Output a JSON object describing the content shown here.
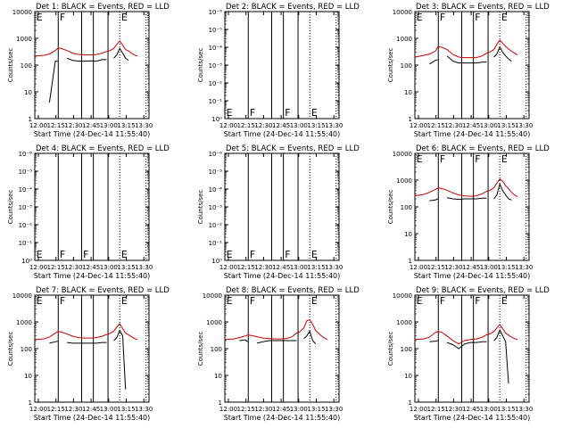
{
  "figure": {
    "x_tick_labels": [
      "12:00",
      "12:15",
      "12:30",
      "12:45",
      "13:00",
      "13:15",
      "13:30"
    ],
    "x_label": "Start Time (24-Dec-14 11:55:40)",
    "y_label": "Counts/sec",
    "colors": {
      "events": "#000000",
      "lld": "#cc0000",
      "background": "#ffffff"
    }
  },
  "chart_data": [
    {
      "title": "Det 1: BLACK = Events, RED = LLD",
      "type": "line",
      "yscale": "log",
      "y_tick_labels": [
        "1",
        "10",
        "100",
        "1000",
        "10000"
      ],
      "ylim": [
        1,
        10000
      ],
      "xlim_minutes": [
        -3,
        36
      ],
      "vlines_solid": [
        5,
        13,
        17,
        22
      ],
      "vlines_dotted": [
        26,
        35
      ],
      "flags": [
        {
          "x": -2.5,
          "text": "E"
        },
        {
          "x": 5.5,
          "text": "F"
        },
        {
          "x": 26.5,
          "text": "E"
        }
      ],
      "x_minutes": [
        -3,
        0,
        2,
        4,
        4.8,
        5,
        6,
        8,
        10,
        12,
        14,
        16,
        18,
        20,
        21.5,
        22,
        22.5,
        24,
        25,
        26,
        27,
        28,
        29,
        30,
        31,
        32
      ],
      "series": [
        {
          "name": "RED = LLD",
          "values": [
            220,
            230,
            260,
            350,
            420,
            430,
            420,
            350,
            280,
            250,
            240,
            240,
            250,
            280,
            320,
            330,
            340,
            420,
            600,
            800,
            560,
            380,
            340,
            280,
            240,
            215
          ]
        },
        {
          "name": "BLACK = Events",
          "values": [
            null,
            null,
            4,
            140,
            140,
            null,
            null,
            180,
            150,
            140,
            140,
            145,
            140,
            160,
            160,
            null,
            null,
            180,
            240,
            420,
            280,
            180,
            150,
            null,
            null,
            null
          ]
        }
      ]
    },
    {
      "title": "Det 2: BLACK = Events, RED = LLD",
      "type": "line",
      "yscale": "log",
      "y_tick_labels": [
        "10⁰",
        "10⁻¹",
        "10⁻²",
        "10⁻³",
        "10⁻⁴",
        "10⁻⁵",
        "10⁻⁶"
      ],
      "ylim": [
        1,
        1e-06
      ],
      "xlim_minutes": [
        -3,
        36
      ],
      "vlines_solid": [
        5,
        13,
        17,
        22
      ],
      "vlines_dotted": [
        26,
        35
      ],
      "flags": [
        {
          "x": -2.5,
          "text": "E"
        },
        {
          "x": 5.5,
          "text": "F"
        },
        {
          "x": 17.5,
          "text": "F"
        },
        {
          "x": 26.5,
          "text": "E"
        }
      ],
      "x_minutes": [],
      "series": []
    },
    {
      "title": "Det 3: BLACK = Events, RED = LLD",
      "type": "line",
      "yscale": "log",
      "y_tick_labels": [
        "1",
        "10",
        "100",
        "1000",
        "10000"
      ],
      "ylim": [
        1,
        10000
      ],
      "xlim_minutes": [
        -3,
        36
      ],
      "vlines_solid": [
        5,
        13,
        17,
        22
      ],
      "vlines_dotted": [
        26,
        35
      ],
      "flags": [
        {
          "x": -2.5,
          "text": "E"
        },
        {
          "x": 5.5,
          "text": "F"
        },
        {
          "x": 17.5,
          "text": "F"
        },
        {
          "x": 26.5,
          "text": "E"
        }
      ],
      "x_minutes": [
        -3,
        0,
        2,
        4,
        4.8,
        5,
        6,
        8,
        10,
        12,
        14,
        16,
        18,
        20,
        21.5,
        22,
        22.5,
        24,
        25,
        26,
        27,
        28,
        29,
        30,
        31,
        32
      ],
      "series": [
        {
          "name": "RED = LLD",
          "values": [
            200,
            230,
            260,
            330,
            470,
            480,
            470,
            380,
            250,
            200,
            190,
            190,
            190,
            220,
            280,
            290,
            300,
            380,
            600,
            850,
            650,
            500,
            400,
            330,
            280,
            240
          ]
        },
        {
          "name": "BLACK = Events",
          "values": [
            null,
            null,
            110,
            150,
            160,
            null,
            null,
            220,
            140,
            120,
            120,
            120,
            120,
            130,
            130,
            null,
            null,
            200,
            260,
            470,
            300,
            220,
            170,
            140,
            null,
            null
          ]
        }
      ]
    },
    {
      "title": "Det 4: BLACK = Events, RED = LLD",
      "type": "line",
      "yscale": "log",
      "y_tick_labels": [
        "10⁰",
        "10⁻¹",
        "10⁻²",
        "10⁻³",
        "10⁻⁴",
        "10⁻⁵",
        "10⁻⁶"
      ],
      "ylim": [
        1,
        1e-06
      ],
      "xlim_minutes": [
        -3,
        36
      ],
      "vlines_solid": [
        5,
        13,
        17,
        22
      ],
      "vlines_dotted": [
        26,
        35
      ],
      "flags": [
        {
          "x": -2.5,
          "text": "E"
        },
        {
          "x": 5.5,
          "text": "F"
        },
        {
          "x": 13.5,
          "text": "F"
        },
        {
          "x": 26.5,
          "text": "E"
        }
      ],
      "x_minutes": [],
      "series": []
    },
    {
      "title": "Det 5: BLACK = Events, RED = LLD",
      "type": "line",
      "yscale": "log",
      "y_tick_labels": [
        "10⁰",
        "10⁻¹",
        "10⁻²",
        "10⁻³",
        "10⁻⁴",
        "10⁻⁵",
        "10⁻⁶"
      ],
      "ylim": [
        1,
        1e-06
      ],
      "xlim_minutes": [
        -3,
        36
      ],
      "vlines_solid": [
        5,
        13,
        17,
        22
      ],
      "vlines_dotted": [
        26,
        35
      ],
      "flags": [
        {
          "x": -2.5,
          "text": "E"
        },
        {
          "x": 5.5,
          "text": "F"
        },
        {
          "x": 17.5,
          "text": "F"
        },
        {
          "x": 26.5,
          "text": "E"
        }
      ],
      "x_minutes": [],
      "series": []
    },
    {
      "title": "Det 6: BLACK = Events, RED = LLD",
      "type": "line",
      "yscale": "log",
      "y_tick_labels": [
        "1",
        "10",
        "100",
        "1000",
        "10000"
      ],
      "ylim": [
        1,
        10000
      ],
      "xlim_minutes": [
        -3,
        36
      ],
      "vlines_solid": [
        5,
        13,
        17,
        22
      ],
      "vlines_dotted": [
        26,
        35
      ],
      "flags": [
        {
          "x": -2.5,
          "text": "E"
        },
        {
          "x": 5.5,
          "text": "F"
        },
        {
          "x": 17.5,
          "text": "F"
        },
        {
          "x": 26.5,
          "text": "E"
        }
      ],
      "x_minutes": [
        -3,
        0,
        2,
        4,
        4.8,
        5,
        6,
        8,
        10,
        12,
        14,
        16,
        18,
        20,
        21.5,
        22,
        22.5,
        24,
        25,
        26,
        27,
        28,
        29,
        30,
        31,
        32
      ],
      "series": [
        {
          "name": "RED = LLD",
          "values": [
            260,
            290,
            350,
            450,
            500,
            500,
            490,
            420,
            330,
            280,
            260,
            250,
            260,
            310,
            380,
            390,
            400,
            520,
            780,
            1100,
            900,
            620,
            480,
            350,
            280,
            240
          ]
        },
        {
          "name": "BLACK = Events",
          "values": [
            null,
            null,
            170,
            180,
            200,
            null,
            null,
            220,
            200,
            190,
            200,
            200,
            200,
            210,
            210,
            null,
            null,
            200,
            280,
            700,
            400,
            280,
            200,
            180,
            null,
            null
          ]
        }
      ]
    },
    {
      "title": "Det 7: BLACK = Events, RED = LLD",
      "type": "line",
      "yscale": "log",
      "y_tick_labels": [
        "1",
        "10",
        "100",
        "1000",
        "10000"
      ],
      "ylim": [
        1,
        10000
      ],
      "xlim_minutes": [
        -3,
        36
      ],
      "vlines_solid": [
        5,
        13,
        17,
        22
      ],
      "vlines_dotted": [
        26,
        35
      ],
      "flags": [
        {
          "x": -2.5,
          "text": "E"
        },
        {
          "x": 5.5,
          "text": "F"
        },
        {
          "x": 26.5,
          "text": "E"
        }
      ],
      "x_minutes": [
        -3,
        0,
        2,
        4,
        4.8,
        5,
        6,
        8,
        10,
        12,
        14,
        16,
        18,
        20,
        21.5,
        22,
        22.5,
        24,
        25,
        26,
        27,
        28,
        29,
        30,
        31,
        32
      ],
      "series": [
        {
          "name": "RED = LLD",
          "values": [
            220,
            230,
            270,
            380,
            430,
            430,
            420,
            350,
            290,
            260,
            250,
            250,
            260,
            290,
            340,
            350,
            360,
            450,
            650,
            850,
            560,
            380,
            330,
            280,
            240,
            215
          ]
        },
        {
          "name": "BLACK = Events",
          "values": [
            null,
            null,
            160,
            180,
            190,
            null,
            null,
            170,
            160,
            160,
            160,
            160,
            160,
            170,
            170,
            null,
            null,
            200,
            260,
            480,
            300,
            3,
            null,
            null,
            null,
            null
          ]
        }
      ]
    },
    {
      "title": "Det 8: BLACK = Events, RED = LLD",
      "type": "line",
      "yscale": "log",
      "y_tick_labels": [
        "1",
        "10",
        "100",
        "1000",
        "10000"
      ],
      "ylim": [
        1,
        10000
      ],
      "xlim_minutes": [
        -3,
        36
      ],
      "vlines_solid": [
        5,
        13,
        17,
        22
      ],
      "vlines_dotted": [
        26,
        35
      ],
      "flags": [
        {
          "x": -2.5,
          "text": "E"
        },
        {
          "x": 5.5,
          "text": "F"
        },
        {
          "x": 26.5,
          "text": "E"
        }
      ],
      "x_minutes": [
        -3,
        0,
        2,
        4,
        4.8,
        5,
        6,
        8,
        10,
        12,
        14,
        16,
        18,
        20,
        21.5,
        22,
        22.5,
        24,
        25,
        26,
        27,
        28,
        29,
        30,
        31,
        32
      ],
      "series": [
        {
          "name": "RED = LLD",
          "values": [
            220,
            230,
            260,
            300,
            320,
            320,
            310,
            280,
            250,
            240,
            230,
            230,
            240,
            280,
            380,
            400,
            420,
            600,
            1100,
            1200,
            800,
            480,
            380,
            300,
            250,
            220
          ]
        },
        {
          "name": "BLACK = Events",
          "values": [
            null,
            null,
            200,
            210,
            180,
            null,
            null,
            160,
            180,
            200,
            200,
            200,
            200,
            200,
            200,
            null,
            null,
            240,
            300,
            450,
            200,
            150,
            null,
            null,
            null,
            null
          ]
        }
      ]
    },
    {
      "title": "Det 9: BLACK = Events, RED = LLD",
      "type": "line",
      "yscale": "log",
      "y_tick_labels": [
        "1",
        "10",
        "100",
        "1000",
        "10000"
      ],
      "ylim": [
        1,
        10000
      ],
      "xlim_minutes": [
        -3,
        36
      ],
      "vlines_solid": [
        5,
        13,
        17,
        22
      ],
      "vlines_dotted": [
        26,
        35
      ],
      "flags": [
        {
          "x": -2.5,
          "text": "E"
        },
        {
          "x": 5.5,
          "text": "F"
        },
        {
          "x": 17.5,
          "text": "F"
        },
        {
          "x": 26.5,
          "text": "E"
        }
      ],
      "x_minutes": [
        -3,
        0,
        2,
        4,
        4.8,
        5,
        6,
        8,
        10,
        12,
        14,
        16,
        18,
        20,
        21.5,
        22,
        22.5,
        24,
        25,
        26,
        27,
        28,
        29,
        30,
        31,
        32
      ],
      "series": [
        {
          "name": "RED = LLD",
          "values": [
            220,
            230,
            270,
            400,
            430,
            430,
            420,
            300,
            200,
            150,
            200,
            220,
            230,
            270,
            330,
            340,
            350,
            440,
            600,
            800,
            560,
            380,
            320,
            270,
            240,
            215
          ]
        },
        {
          "name": "BLACK = Events",
          "values": [
            null,
            null,
            180,
            190,
            200,
            null,
            null,
            170,
            140,
            100,
            150,
            170,
            170,
            180,
            180,
            null,
            null,
            200,
            260,
            500,
            300,
            180,
            5,
            null,
            null,
            null
          ]
        }
      ]
    }
  ]
}
